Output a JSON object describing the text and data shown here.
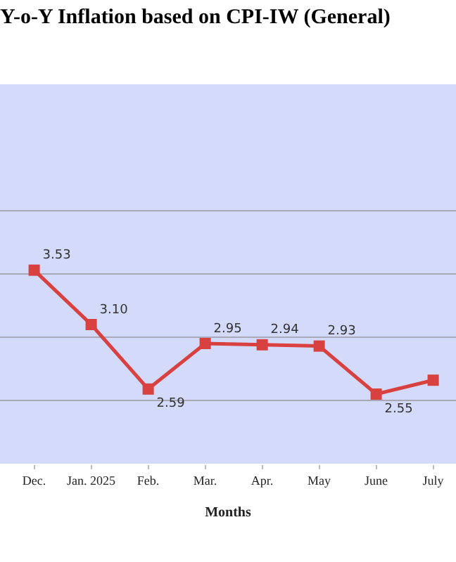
{
  "chart_data": {
    "type": "line",
    "title": "Y-o-Y Inflation based on CPI-IW (General)",
    "xlabel": "Months",
    "categories": [
      "Dec.",
      "Jan. 2025",
      "Feb.",
      "Mar.",
      "Apr.",
      "May",
      "June",
      "July"
    ],
    "series": [
      {
        "color": "#d94040",
        "values": [
          3.53,
          3.1,
          2.59,
          2.95,
          2.94,
          2.93,
          2.55,
          2.66
        ],
        "value_labels": [
          "3.53",
          "3.10",
          "2.59",
          "2.95",
          "2.94",
          "2.93",
          "2.55",
          null
        ]
      }
    ],
    "ylim": [
      2.0,
      5.0
    ],
    "yticks": [
      {
        "value": 2.5,
        "label": null
      },
      {
        "value": 3.0,
        "label": null
      },
      {
        "value": 3.5,
        "label": null
      },
      {
        "value": 4.0,
        "label": null
      }
    ],
    "tick_labels": "x",
    "grid": "y",
    "legend": false,
    "marker": "square",
    "line_style": "solid"
  }
}
